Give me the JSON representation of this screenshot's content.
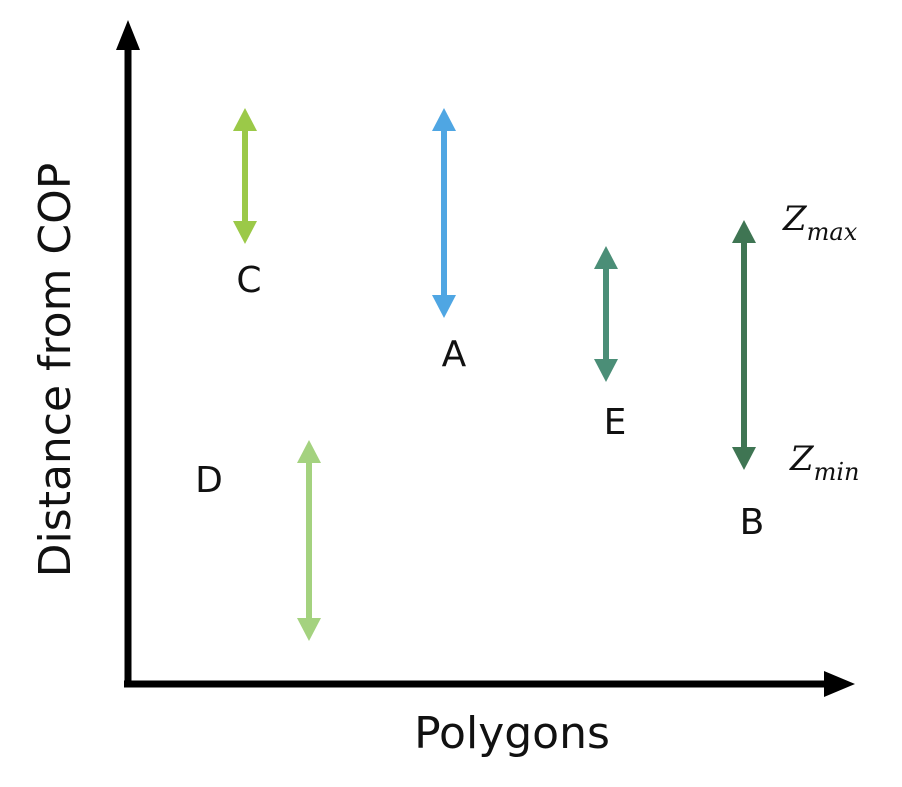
{
  "axes": {
    "x_title": "Polygons",
    "y_title": "Distance from COP"
  },
  "colors": {
    "axis": "#000000",
    "C": "#9bc948",
    "A": "#4fa6e3",
    "E": "#4b8e77",
    "B": "#3f7553",
    "D": "#a4d27f"
  },
  "polygons": [
    {
      "id": "C",
      "label": "C",
      "color_key": "C"
    },
    {
      "id": "A",
      "label": "A",
      "color_key": "A"
    },
    {
      "id": "E",
      "label": "E",
      "color_key": "E"
    },
    {
      "id": "B",
      "label": "B",
      "color_key": "B"
    },
    {
      "id": "D",
      "label": "D",
      "color_key": "D"
    }
  ],
  "zmax": {
    "base": "Z",
    "sub": "max"
  },
  "zmin": {
    "base": "Z",
    "sub": "min"
  }
}
